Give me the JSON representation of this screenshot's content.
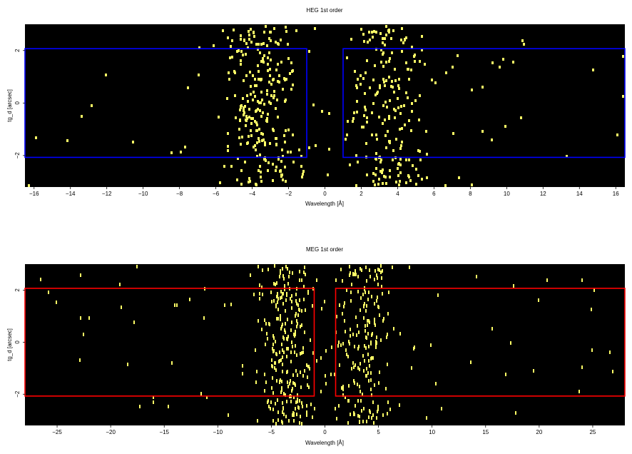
{
  "chart_data": [
    {
      "type": "heatmap",
      "title": "HEG 1st order",
      "xlabel": "Wavelength [Å]",
      "ylabel": "tg_d [arcsec]",
      "xlim": [
        -16.5,
        16.5
      ],
      "ylim": [
        -3.2,
        3.0
      ],
      "xticks": [
        -16,
        -14,
        -12,
        -10,
        -8,
        -6,
        -4,
        -2,
        0,
        2,
        4,
        6,
        8,
        10,
        12,
        14,
        16
      ],
      "yticks": [
        -2,
        0,
        2
      ],
      "background_color": "#000000",
      "event_color": "#ffff66",
      "region_color": "#0000ff",
      "regions": [
        {
          "x": [
            -16.5,
            -1.0
          ],
          "y": [
            -2.07,
            2.07
          ]
        },
        {
          "x": [
            1.0,
            16.5
          ],
          "y": [
            -2.07,
            2.07
          ]
        }
      ],
      "event_clusters": [
        {
          "center": -3.5,
          "spread": 1.1,
          "count": 260
        },
        {
          "center": 3.5,
          "spread": 1.0,
          "count": 200
        }
      ],
      "background_events": 60
    },
    {
      "type": "heatmap",
      "title": "MEG 1st order",
      "xlabel": "Wavelength [Å]",
      "ylabel": "tg_d [arcsec]",
      "xlim": [
        -28,
        28
      ],
      "ylim": [
        -3.2,
        3.0
      ],
      "xticks": [
        -25,
        -20,
        -15,
        -10,
        -5,
        0,
        5,
        10,
        15,
        20,
        25
      ],
      "yticks": [
        -2,
        0,
        2
      ],
      "background_color": "#000000",
      "event_color": "#ffff66",
      "region_color": "#ff0000",
      "regions": [
        {
          "x": [
            -28,
            -1.0
          ],
          "y": [
            -2.07,
            2.07
          ]
        },
        {
          "x": [
            1.0,
            28
          ],
          "y": [
            -2.07,
            2.07
          ]
        }
      ],
      "event_clusters": [
        {
          "center": -3.8,
          "spread": 1.4,
          "count": 260
        },
        {
          "center": 3.5,
          "spread": 1.4,
          "count": 200
        }
      ],
      "background_events": 80
    }
  ]
}
